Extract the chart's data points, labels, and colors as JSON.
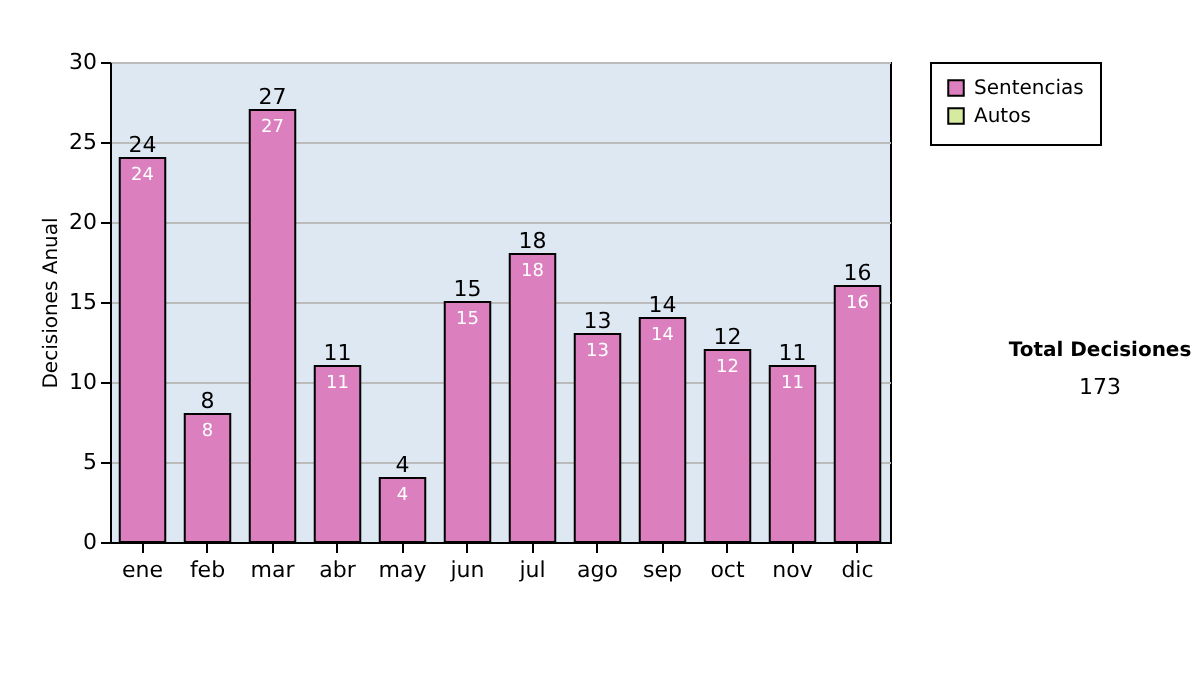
{
  "chart_data": {
    "type": "bar",
    "ylabel": "Decisiones Anual",
    "categories": [
      "ene",
      "feb",
      "mar",
      "abr",
      "may",
      "jun",
      "jul",
      "ago",
      "sep",
      "oct",
      "nov",
      "dic"
    ],
    "series": [
      {
        "name": "Sentencias",
        "color": "#db7fbf",
        "values": [
          24,
          8,
          27,
          11,
          4,
          15,
          18,
          13,
          14,
          12,
          11,
          16
        ],
        "value_labels": [
          "24",
          "8",
          "27",
          "11",
          "4",
          "15",
          "18",
          "13",
          "14",
          "12",
          "11",
          "16"
        ]
      },
      {
        "name": "Autos",
        "color": "#d6eaa0",
        "values": [
          0,
          0,
          0,
          0,
          0,
          0,
          0,
          0,
          0,
          0,
          0,
          0
        ]
      }
    ],
    "totals": [
      "24",
      "8",
      "27",
      "11",
      "4",
      "15",
      "18",
      "13",
      "14",
      "12",
      "11",
      "16"
    ],
    "ylim": [
      0,
      30
    ],
    "yticks": [
      0,
      5,
      10,
      15,
      20,
      25,
      30
    ],
    "grid": "y",
    "legend": "right",
    "annotations": [
      "Total Decisiones",
      "173"
    ]
  }
}
